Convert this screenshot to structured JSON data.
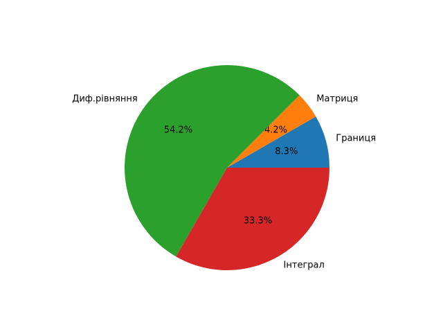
{
  "chart_data": {
    "type": "pie",
    "title": "",
    "start_angle_deg": 0,
    "direction": "counterclockwise",
    "slices": [
      {
        "label": "Границя",
        "value": 8.3,
        "pct_label": "8.3%",
        "color": "#1f77b4"
      },
      {
        "label": "Матриця",
        "value": 4.2,
        "pct_label": "4.2%",
        "color": "#ff7f0e"
      },
      {
        "label": "Диф.рівняння",
        "value": 54.2,
        "pct_label": "54.2%",
        "color": "#2ca02c"
      },
      {
        "label": "Інтеграл",
        "value": 33.3,
        "pct_label": "33.3%",
        "color": "#d62728"
      }
    ]
  }
}
